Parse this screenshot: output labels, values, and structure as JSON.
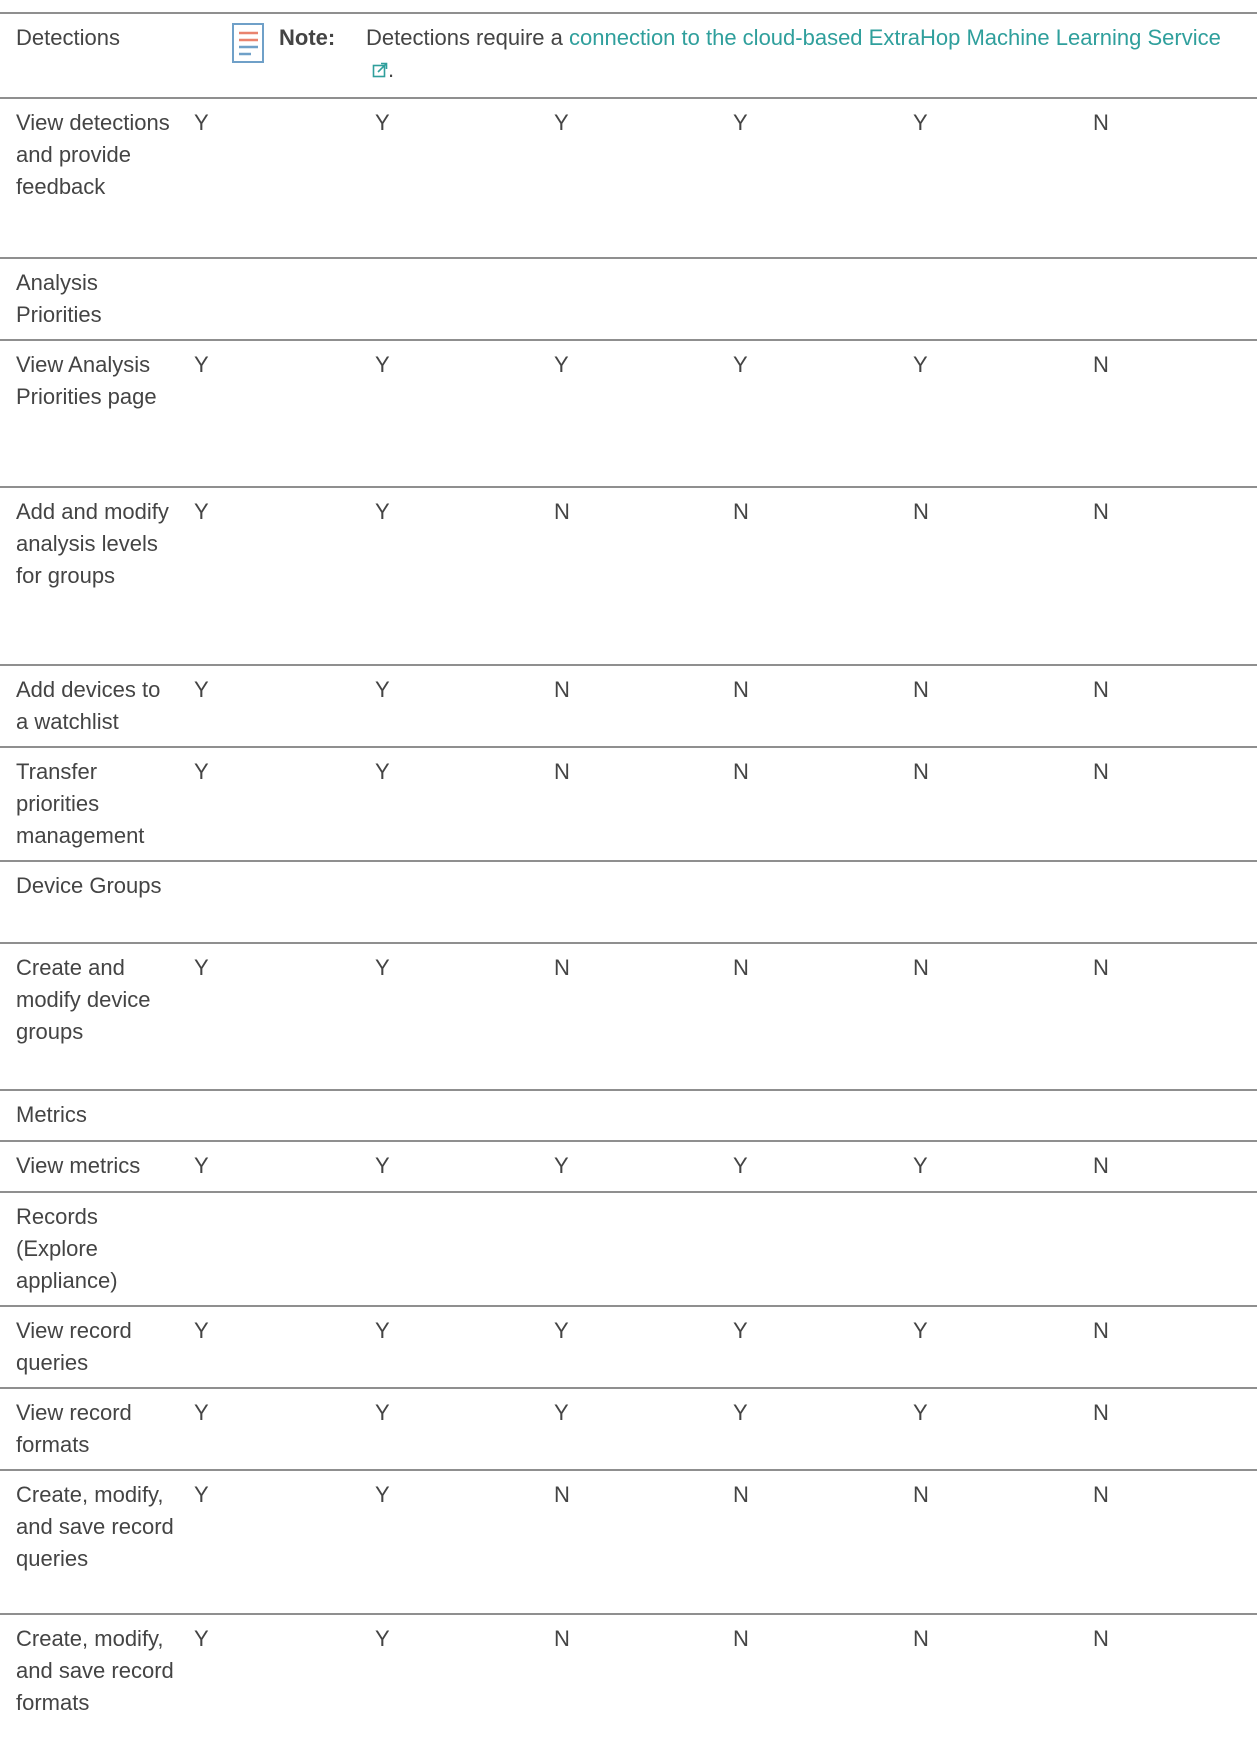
{
  "note": {
    "label": "Note:",
    "text_before": "Detections require a ",
    "link_text": "connection to the cloud-based ExtraHop Machine Learning Service",
    "text_after": "."
  },
  "rows": [
    {
      "label": "Detections",
      "values": []
    },
    {
      "label": "View detections and provide feedback",
      "values": [
        "Y",
        "Y",
        "Y",
        "Y",
        "Y",
        "N"
      ]
    },
    {
      "label": "Analysis Priorities",
      "values": []
    },
    {
      "label": "View Analysis Priorities page",
      "values": [
        "Y",
        "Y",
        "Y",
        "Y",
        "Y",
        "N"
      ]
    },
    {
      "label": "Add and modify analysis levels for groups",
      "values": [
        "Y",
        "Y",
        "N",
        "N",
        "N",
        "N"
      ]
    },
    {
      "label": "Add devices to a watchlist",
      "values": [
        "Y",
        "Y",
        "N",
        "N",
        "N",
        "N"
      ]
    },
    {
      "label": "Transfer priorities management",
      "values": [
        "Y",
        "Y",
        "N",
        "N",
        "N",
        "N"
      ]
    },
    {
      "label": "Device Groups",
      "values": []
    },
    {
      "label": "Create and modify device groups",
      "values": [
        "Y",
        "Y",
        "N",
        "N",
        "N",
        "N"
      ]
    },
    {
      "label": "Metrics",
      "values": []
    },
    {
      "label": "View metrics",
      "values": [
        "Y",
        "Y",
        "Y",
        "Y",
        "Y",
        "N"
      ]
    },
    {
      "label": "Records (Explore appliance)",
      "values": []
    },
    {
      "label": "View record queries",
      "values": [
        "Y",
        "Y",
        "Y",
        "Y",
        "Y",
        "N"
      ]
    },
    {
      "label": "View record formats",
      "values": [
        "Y",
        "Y",
        "Y",
        "Y",
        "Y",
        "N"
      ]
    },
    {
      "label": "Create, modify, and save record queries",
      "values": [
        "Y",
        "Y",
        "N",
        "N",
        "N",
        "N"
      ]
    },
    {
      "label": "Create, modify, and save record formats",
      "values": [
        "Y",
        "Y",
        "N",
        "N",
        "N",
        "N"
      ]
    }
  ]
}
